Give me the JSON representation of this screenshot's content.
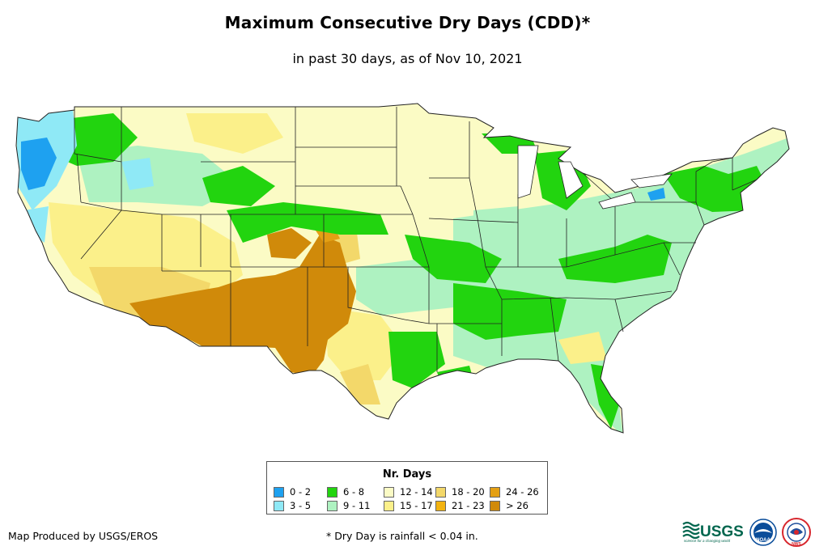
{
  "title": "Maximum Consecutive Dry Days (CDD)*",
  "subtitle": "in past 30 days, as of Nov 10, 2021",
  "legend": {
    "title": "Nr. Days",
    "items": [
      {
        "label": "0 - 2",
        "color": "#1ea1f0"
      },
      {
        "label": "3 - 5",
        "color": "#8fe9f6"
      },
      {
        "label": "6 - 8",
        "color": "#22d40f"
      },
      {
        "label": "9 - 11",
        "color": "#aef2c1"
      },
      {
        "label": "12 - 14",
        "color": "#fbfbc5"
      },
      {
        "label": "15 - 17",
        "color": "#fbf08a"
      },
      {
        "label": "18 - 20",
        "color": "#f3d86a"
      },
      {
        "label": "21 - 23",
        "color": "#f3b310"
      },
      {
        "label": "24 - 26",
        "color": "#e4a014"
      },
      {
        "label": "> 26",
        "color": "#d08a0a"
      }
    ]
  },
  "footer": {
    "credit": "Map Produced by USGS/EROS",
    "note": "* Dry Day is rainfall < 0.04 in."
  },
  "logos": {
    "usgs": {
      "text": "USGS",
      "tagline": "science for a changing world",
      "color": "#00664e"
    },
    "noaa": {
      "text": "NOAA",
      "color": "#0a4d9a"
    },
    "nws": {
      "text": "NWS",
      "color": "#d7262d"
    }
  }
}
